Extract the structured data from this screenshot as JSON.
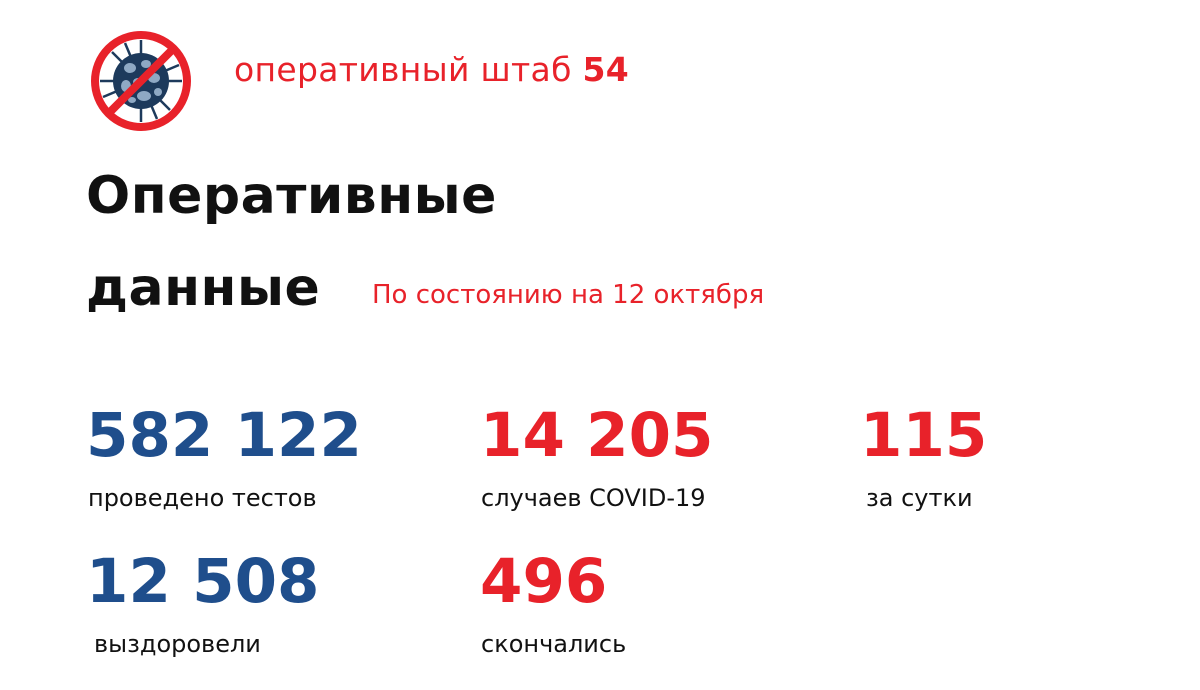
{
  "header": {
    "brand_text": "оперативный штаб",
    "brand_number": "54",
    "logo": "no-virus-icon"
  },
  "title": {
    "line1": "Оперативные",
    "line2": "данные",
    "date": "По состоянию на  12 октября"
  },
  "stats": [
    {
      "value": "582 122",
      "label": "проведено тестов",
      "color": "#1f4e8c"
    },
    {
      "value": "14 205",
      "label": "случаев COVID-19",
      "color": "#e8222a"
    },
    {
      "value": "115",
      "label": "за сутки",
      "color": "#e8222a"
    },
    {
      "value": "12 508",
      "label": "выздоровели",
      "color": "#1f4e8c"
    },
    {
      "value": "496",
      "label": "скончались",
      "color": "#e8222a"
    }
  ]
}
